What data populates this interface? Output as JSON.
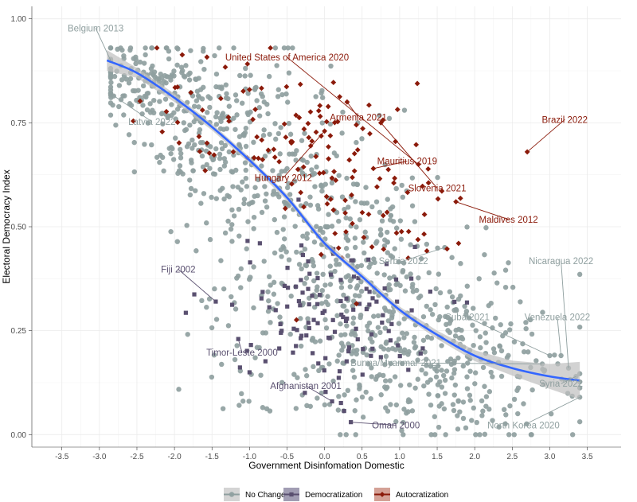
{
  "chart_data": {
    "type": "scatter",
    "xlabel": "Government Disinfomation Domestic",
    "ylabel": "Electoral Democracy Index",
    "xlim": [
      -3.9,
      3.95
    ],
    "ylim": [
      -0.03,
      1.03
    ],
    "x_ticks": [
      "-3.5",
      "-3.0",
      "-2.5",
      "-2.0",
      "-1.5",
      "-1.0",
      "-0.5",
      "0.0",
      "0.5",
      "1.0",
      "1.5",
      "2.0",
      "2.5",
      "3.0",
      "3.5"
    ],
    "x_tick_values": [
      -3.5,
      -3.0,
      -2.5,
      -2.0,
      -1.5,
      -1.0,
      -0.5,
      0.0,
      0.5,
      1.0,
      1.5,
      2.0,
      2.5,
      3.0,
      3.5
    ],
    "y_ticks": [
      "0.00",
      "0.25",
      "0.50",
      "0.75",
      "1.00"
    ],
    "y_tick_values": [
      0.0,
      0.25,
      0.5,
      0.75,
      1.0
    ],
    "grid": true,
    "legend": {
      "position": "bottom",
      "items": [
        {
          "label": "No Change",
          "color": "#8f9f9f",
          "shape": "circle"
        },
        {
          "label": "Democratization",
          "color": "#5a5070",
          "shape": "square"
        },
        {
          "label": "Autocratization",
          "color": "#8b1a0a",
          "shape": "diamond"
        }
      ]
    },
    "series": [
      {
        "name": "No Change",
        "color": "#8f9f9f",
        "shape": "circle",
        "clusters": [
          {
            "cx": -2.3,
            "cy": 0.85,
            "sx": 0.45,
            "sy": 0.05,
            "n": 150
          },
          {
            "cx": -1.6,
            "cy": 0.75,
            "sx": 0.45,
            "sy": 0.1,
            "n": 140
          },
          {
            "cx": -1.0,
            "cy": 0.65,
            "sx": 0.5,
            "sy": 0.12,
            "n": 130
          },
          {
            "cx": -0.3,
            "cy": 0.55,
            "sx": 0.5,
            "sy": 0.14,
            "n": 120
          },
          {
            "cx": 0.3,
            "cy": 0.42,
            "sx": 0.5,
            "sy": 0.14,
            "n": 130
          },
          {
            "cx": 0.8,
            "cy": 0.3,
            "sx": 0.5,
            "sy": 0.13,
            "n": 130
          },
          {
            "cx": 1.5,
            "cy": 0.22,
            "sx": 0.55,
            "sy": 0.12,
            "n": 130
          },
          {
            "cx": 2.3,
            "cy": 0.17,
            "sx": 0.6,
            "sy": 0.1,
            "n": 100
          },
          {
            "cx": 0.8,
            "cy": 0.12,
            "sx": 1.1,
            "sy": 0.06,
            "n": 90
          },
          {
            "cx": -0.9,
            "cy": 0.3,
            "sx": 0.4,
            "sy": 0.08,
            "n": 40
          }
        ],
        "labeled_points": [
          {
            "label": "Belgium 2013",
            "x": -2.85,
            "y": 0.9
          },
          {
            "label": "Latvia 2022",
            "x": -2.85,
            "y": 0.82
          },
          {
            "label": "Nicaragua 2022",
            "x": 3.25,
            "y": 0.16
          },
          {
            "label": "Venezuela 2022",
            "x": 3.15,
            "y": 0.19
          },
          {
            "label": "Serbia 2022",
            "x": 1.6,
            "y": 0.45
          },
          {
            "label": "Cuba 2021",
            "x": 3.0,
            "y": 0.19
          },
          {
            "label": "Burma/Myanmar 2021",
            "x": 2.9,
            "y": 0.17
          },
          {
            "label": "Syria 2022",
            "x": 3.35,
            "y": 0.14
          },
          {
            "label": "North Korea 2020",
            "x": 3.4,
            "y": 0.09
          }
        ]
      },
      {
        "name": "Democratization",
        "color": "#5a5070",
        "shape": "square",
        "clusters": [
          {
            "cx": -0.2,
            "cy": 0.32,
            "sx": 0.55,
            "sy": 0.1,
            "n": 80
          },
          {
            "cx": 0.6,
            "cy": 0.25,
            "sx": 0.5,
            "sy": 0.08,
            "n": 40
          }
        ],
        "labeled_points": [
          {
            "label": "Fiji 2002",
            "x": -1.45,
            "y": 0.32
          },
          {
            "label": "Timor-Leste 2000",
            "x": -1.15,
            "y": 0.23
          },
          {
            "label": "Afghanistan 2001",
            "x": 0.1,
            "y": 0.08
          },
          {
            "label": "Oman 2000",
            "x": 0.35,
            "y": 0.03
          }
        ]
      },
      {
        "name": "Autocratization",
        "color": "#8b1a0a",
        "shape": "diamond",
        "clusters": [
          {
            "cx": -1.4,
            "cy": 0.75,
            "sx": 0.5,
            "sy": 0.09,
            "n": 40
          },
          {
            "cx": -0.1,
            "cy": 0.7,
            "sx": 0.35,
            "sy": 0.08,
            "n": 45
          },
          {
            "cx": 0.8,
            "cy": 0.57,
            "sx": 0.45,
            "sy": 0.1,
            "n": 55
          }
        ],
        "labeled_points": [
          {
            "label": "United States of America 2020",
            "x": 1.25,
            "y": 0.65
          },
          {
            "label": "Armenia 2021",
            "x": 0.3,
            "y": 0.8
          },
          {
            "label": "Brazil 2022",
            "x": 2.7,
            "y": 0.68
          },
          {
            "label": "Mauritius 2019",
            "x": 0.65,
            "y": 0.64
          },
          {
            "label": "Hungary 2012",
            "x": 0.0,
            "y": 0.73
          },
          {
            "label": "Slovenia 2021",
            "x": 0.75,
            "y": 0.75
          },
          {
            "label": "Maldives 2012",
            "x": 1.75,
            "y": 0.56
          }
        ]
      }
    ],
    "smooth_line": {
      "color": "#3366ff",
      "band_color": "#bfbfbf",
      "x": [
        -2.9,
        -2.5,
        -2.0,
        -1.5,
        -1.0,
        -0.5,
        0.0,
        0.5,
        1.0,
        1.5,
        2.0,
        2.5,
        3.0,
        3.4
      ],
      "y": [
        0.9,
        0.87,
        0.81,
        0.74,
        0.66,
        0.57,
        0.46,
        0.38,
        0.3,
        0.24,
        0.19,
        0.16,
        0.14,
        0.13
      ],
      "band_halfwidth": [
        0.025,
        0.012,
        0.01,
        0.008,
        0.008,
        0.008,
        0.008,
        0.008,
        0.008,
        0.01,
        0.013,
        0.018,
        0.03,
        0.045
      ]
    },
    "annotations": [
      {
        "text": "Belgium 2013",
        "series": "No Change",
        "x": -2.85,
        "y": 0.9,
        "tx": -3.05,
        "ty": 0.97
      },
      {
        "text": "Latvia 2022",
        "series": "No Change",
        "x": -2.85,
        "y": 0.82,
        "tx": -2.3,
        "ty": 0.745
      },
      {
        "text": "United States of America 2020",
        "series": "Autocratization",
        "x": 1.25,
        "y": 0.65,
        "tx": -0.5,
        "ty": 0.9
      },
      {
        "text": "Armenia 2021",
        "series": "Autocratization",
        "x": 0.3,
        "y": 0.8,
        "tx": 0.45,
        "ty": 0.755
      },
      {
        "text": "Brazil 2022",
        "series": "Autocratization",
        "x": 2.7,
        "y": 0.68,
        "tx": 3.2,
        "ty": 0.75
      },
      {
        "text": "Mauritius 2019",
        "series": "Autocratization",
        "x": 0.65,
        "y": 0.64,
        "tx": 1.1,
        "ty": 0.65
      },
      {
        "text": "Hungary 2012",
        "series": "Autocratization",
        "x": 0.0,
        "y": 0.73,
        "tx": -0.55,
        "ty": 0.61
      },
      {
        "text": "Slovenia 2021",
        "series": "Autocratization",
        "x": 0.75,
        "y": 0.75,
        "tx": 1.5,
        "ty": 0.585
      },
      {
        "text": "Maldives 2012",
        "series": "Autocratization",
        "x": 1.75,
        "y": 0.56,
        "tx": 2.45,
        "ty": 0.51
      },
      {
        "text": "Fiji 2002",
        "series": "Democratization",
        "x": -1.45,
        "y": 0.32,
        "tx": -1.95,
        "ty": 0.39
      },
      {
        "text": "Nicaragua 2022",
        "series": "No Change",
        "x": 3.25,
        "y": 0.16,
        "tx": 3.15,
        "ty": 0.41
      },
      {
        "text": "Serbia 2022",
        "series": "No Change",
        "x": 1.6,
        "y": 0.45,
        "tx": 1.05,
        "ty": 0.41
      },
      {
        "text": "Cuba 2021",
        "series": "No Change",
        "x": 3.0,
        "y": 0.19,
        "tx": 1.9,
        "ty": 0.275
      },
      {
        "text": "Venezuela 2022",
        "series": "No Change",
        "x": 3.15,
        "y": 0.19,
        "tx": 3.1,
        "ty": 0.275
      },
      {
        "text": "Timor-Leste 2000",
        "series": "Democratization",
        "x": -1.15,
        "y": 0.23,
        "tx": -1.1,
        "ty": 0.19
      },
      {
        "text": "Burma/Myanmar 2021",
        "series": "No Change",
        "x": 2.9,
        "y": 0.17,
        "tx": 0.95,
        "ty": 0.165
      },
      {
        "text": "Syria 2022",
        "series": "No Change",
        "x": 3.35,
        "y": 0.14,
        "tx": 3.15,
        "ty": 0.115
      },
      {
        "text": "Afghanistan 2001",
        "series": "Democratization",
        "x": 0.1,
        "y": 0.08,
        "tx": -0.25,
        "ty": 0.11
      },
      {
        "text": "North Korea 2020",
        "series": "No Change",
        "x": 3.4,
        "y": 0.09,
        "tx": 2.65,
        "ty": 0.015
      },
      {
        "text": "Oman 2000",
        "series": "Democratization",
        "x": 0.35,
        "y": 0.03,
        "tx": 0.95,
        "ty": 0.015
      }
    ]
  }
}
